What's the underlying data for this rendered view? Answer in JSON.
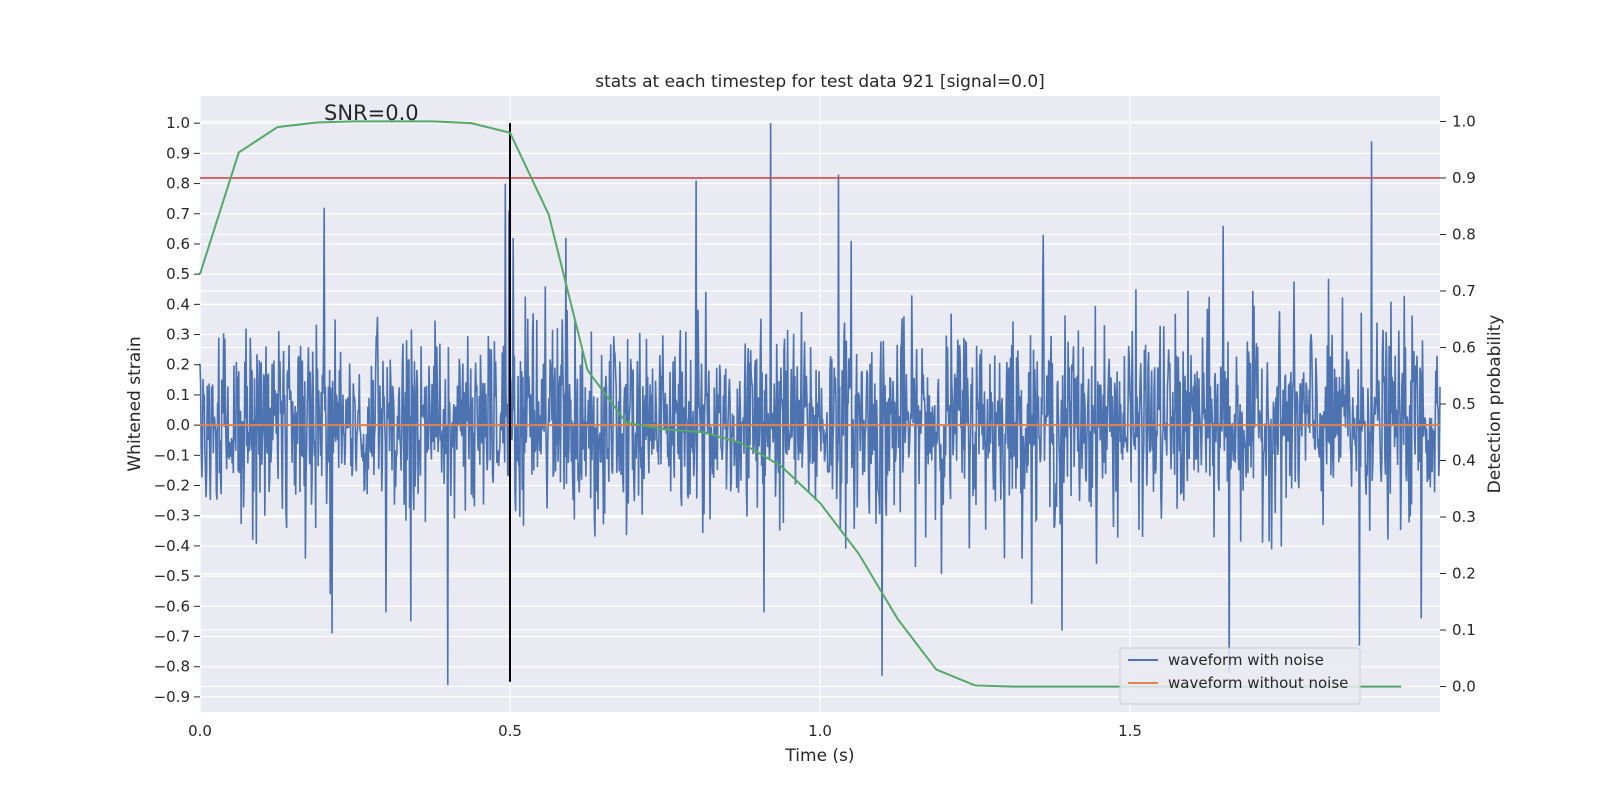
{
  "chart_data": {
    "type": "line",
    "title": "stats at each timestep for test data 921 [signal=0.0]",
    "xlabel": "Time (s)",
    "ylabel": "Whitened strain",
    "y2label": "Detection probability",
    "xlim": [
      0.0,
      2.0
    ],
    "ylim": [
      -0.95,
      1.09
    ],
    "y2lim": [
      -0.045,
      1.045
    ],
    "x_ticks": [
      0.0,
      0.5,
      1.0,
      1.5
    ],
    "x_tick_labels": [
      "0.0",
      "0.5",
      "1.0",
      "1.5"
    ],
    "y_ticks": [
      1.0,
      0.9,
      0.8,
      0.7,
      0.6,
      0.5,
      0.4,
      0.3,
      0.2,
      0.1,
      0.0,
      -0.1,
      -0.2,
      -0.3,
      -0.4,
      -0.5,
      -0.6,
      -0.7,
      -0.8,
      -0.9
    ],
    "y_tick_labels": [
      "1.0",
      "0.9",
      "0.8",
      "0.7",
      "0.6",
      "0.5",
      "0.4",
      "0.3",
      "0.2",
      "0.1",
      "0.0",
      "−0.1",
      "−0.2",
      "−0.3",
      "−0.4",
      "−0.5",
      "−0.6",
      "−0.7",
      "−0.8",
      "−0.9"
    ],
    "y2_ticks": [
      1.0,
      0.9,
      0.8,
      0.7,
      0.6,
      0.5,
      0.4,
      0.3,
      0.2,
      0.1,
      0.0
    ],
    "y2_tick_labels": [
      "1.0",
      "0.9",
      "0.8",
      "0.7",
      "0.6",
      "0.5",
      "0.4",
      "0.3",
      "0.2",
      "0.1",
      "0.0"
    ],
    "grid": true,
    "annotation": "SNR=0.0",
    "annotation_at": [
      0.2,
      1.01
    ],
    "vertical_marker": {
      "x": 0.5,
      "y_from": -0.85,
      "y_to": 1.0,
      "color": "#000000"
    },
    "threshold_line": {
      "axis": "y2",
      "value": 0.9,
      "color": "#c44e52"
    },
    "noise_series": {
      "name": "waveform with noise",
      "color": "#4c72b0",
      "x_start": 0.0,
      "x_end": 2.0,
      "n_points": 2048,
      "amplitude": 0.16,
      "notable_peaks": [
        {
          "x": 0.2,
          "y": 0.72
        },
        {
          "x": 0.21,
          "y": -0.56
        },
        {
          "x": 0.213,
          "y": -0.69
        },
        {
          "x": 0.3,
          "y": 0.74
        },
        {
          "x": 0.3,
          "y": -0.62
        },
        {
          "x": 0.34,
          "y": -0.65
        },
        {
          "x": 0.4,
          "y": -0.86
        },
        {
          "x": 0.492,
          "y": 0.8
        },
        {
          "x": 0.498,
          "y": 0.71
        },
        {
          "x": 0.505,
          "y": 0.62
        },
        {
          "x": 0.92,
          "y": 1.0
        },
        {
          "x": 0.91,
          "y": -0.62
        },
        {
          "x": 1.03,
          "y": 0.83
        },
        {
          "x": 0.8,
          "y": 0.81
        },
        {
          "x": 1.1,
          "y": -0.83
        },
        {
          "x": 1.39,
          "y": -0.68
        },
        {
          "x": 1.66,
          "y": -0.82
        },
        {
          "x": 1.87,
          "y": -0.73
        },
        {
          "x": 1.89,
          "y": 0.94
        },
        {
          "x": 1.97,
          "y": -0.64
        },
        {
          "x": 1.36,
          "y": 0.63
        },
        {
          "x": 1.65,
          "y": 0.66
        },
        {
          "x": 1.05,
          "y": 0.61
        },
        {
          "x": 0.59,
          "y": 0.62
        }
      ]
    },
    "clean_series": {
      "name": "waveform without noise",
      "color": "#dd8452",
      "x": [
        0.0,
        2.0
      ],
      "y": [
        0.0,
        0.0
      ]
    },
    "probability_series": {
      "name": "detection probability",
      "color": "#55a868",
      "axis": "y2",
      "x": [
        0.0,
        0.0625,
        0.125,
        0.1875,
        0.25,
        0.3125,
        0.375,
        0.4375,
        0.5,
        0.5625,
        0.625,
        0.6875,
        0.75,
        0.8125,
        0.875,
        0.9375,
        1.0,
        1.0625,
        1.125,
        1.1875,
        1.25,
        1.3125,
        1.375,
        1.4375,
        1.5,
        1.5625,
        1.625,
        1.6875,
        1.75,
        1.8125,
        1.875,
        1.9375
      ],
      "y": [
        0.73,
        0.945,
        0.99,
        0.998,
        1.0,
        1.0,
        1.0,
        0.997,
        0.98,
        0.835,
        0.56,
        0.467,
        0.455,
        0.45,
        0.43,
        0.39,
        0.325,
        0.235,
        0.12,
        0.03,
        0.002,
        0.0,
        0.0,
        0.0,
        0.0,
        0.0,
        0.0,
        0.0,
        0.0,
        0.0,
        0.0,
        0.0
      ]
    },
    "legend": {
      "placement": "bottom-right",
      "entries": [
        {
          "label": "waveform with noise",
          "color": "#4c72b0"
        },
        {
          "label": "waveform without noise",
          "color": "#dd8452"
        }
      ]
    }
  },
  "colors": {
    "plot_background": "#eaeaf2",
    "grid": "#ffffff",
    "text": "#262626"
  }
}
